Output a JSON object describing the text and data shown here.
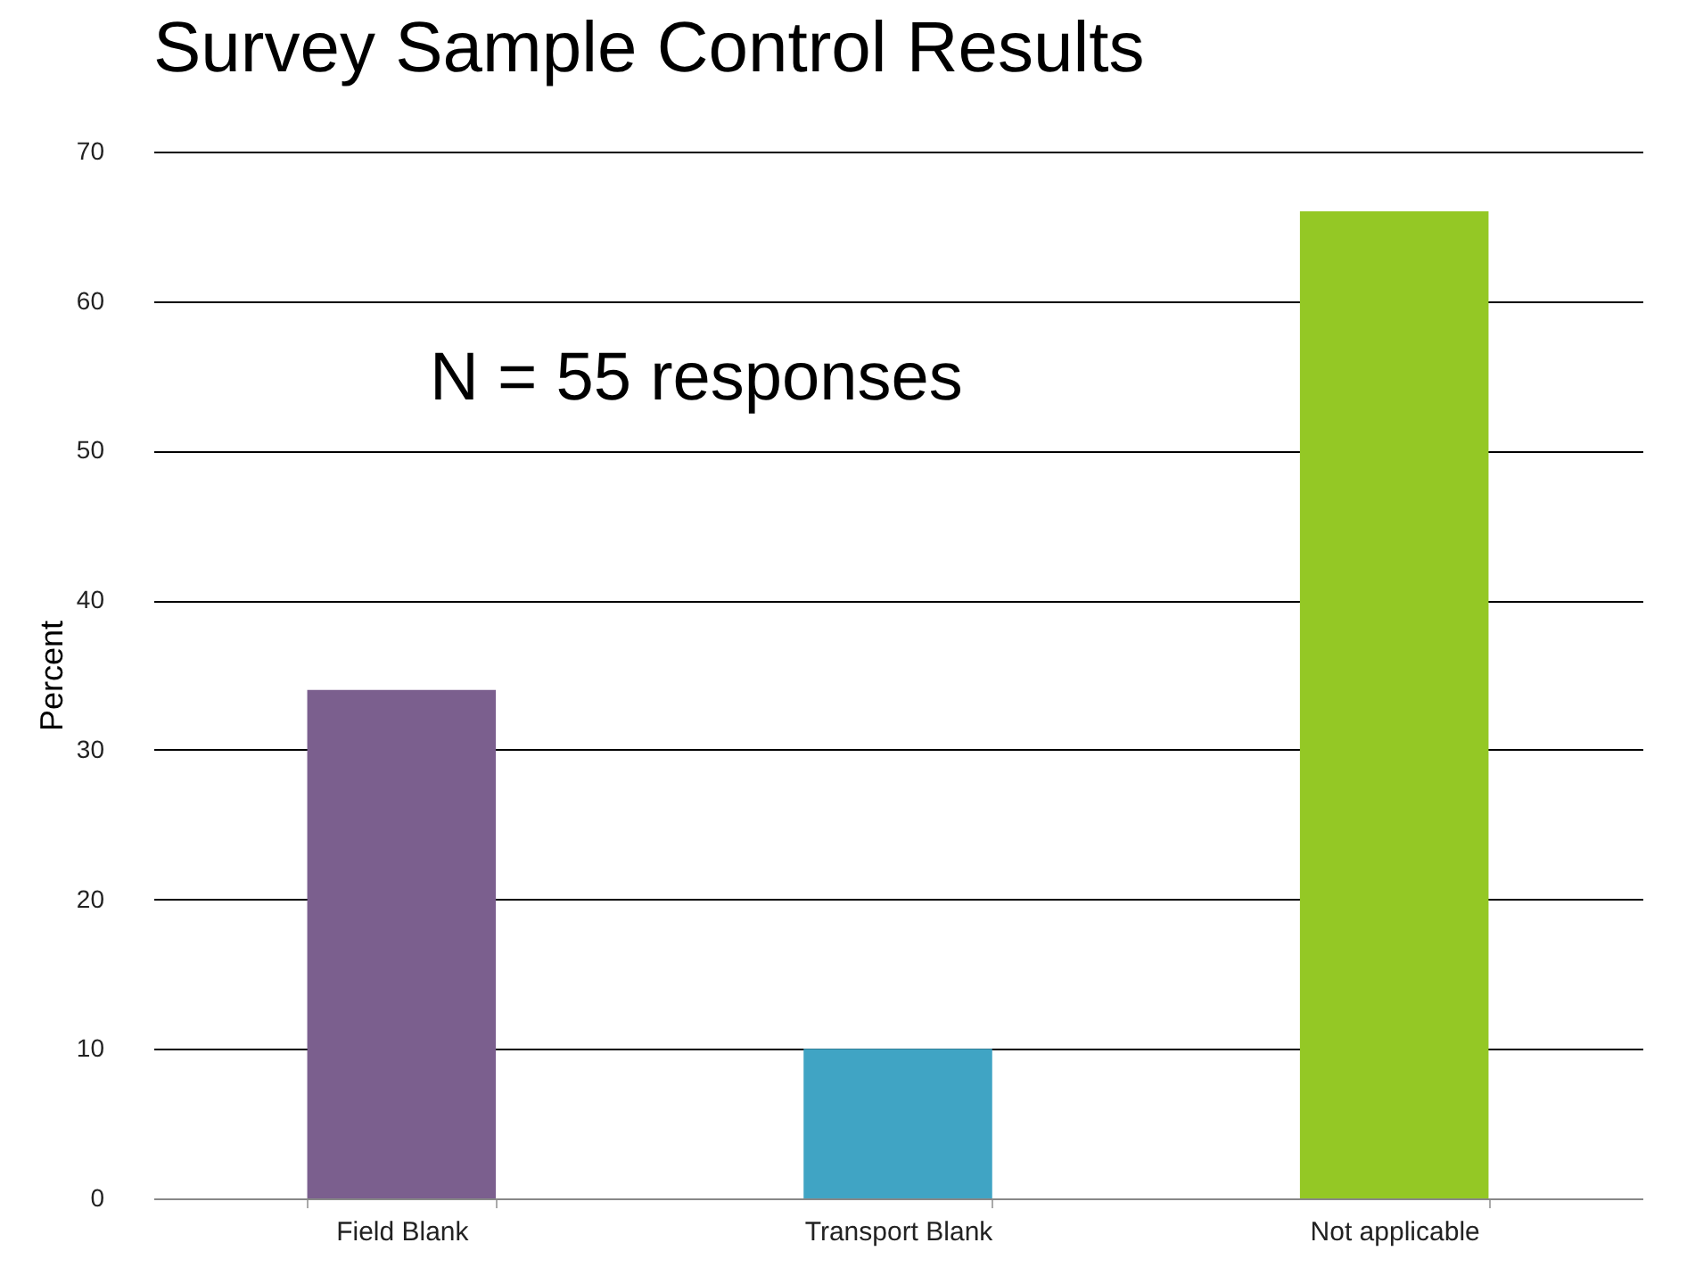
{
  "chart_data": {
    "type": "bar",
    "title": "Survey Sample Control Results",
    "ylabel": "Percent",
    "categories": [
      "Field Blank",
      "Transport Blank",
      "Not applicable"
    ],
    "values": [
      34,
      10,
      66
    ],
    "colors": [
      "#7b5f8e",
      "#40a4c4",
      "#94c825"
    ],
    "ylim": [
      0,
      70
    ],
    "yticks": [
      0,
      10,
      20,
      30,
      40,
      50,
      60,
      70
    ],
    "grid": "y",
    "annotations": [
      "N  = 55 responses"
    ]
  }
}
